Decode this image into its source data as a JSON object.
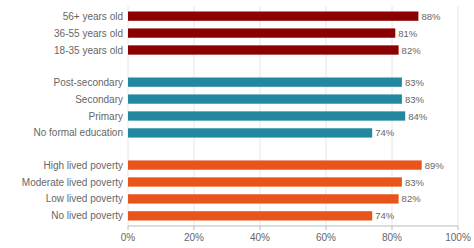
{
  "chart_data": {
    "type": "bar",
    "orientation": "horizontal",
    "categories": [
      "56+ years old",
      "36-55 years old",
      "18-35 years old",
      "Post-secondary",
      "Secondary",
      "Primary",
      "No formal education",
      "High lived poverty",
      "Moderate lived poverty",
      "Low lived poverty",
      "No lived poverty"
    ],
    "values": [
      88,
      81,
      82,
      83,
      83,
      84,
      74,
      89,
      83,
      82,
      74
    ],
    "value_labels": [
      "88%",
      "81%",
      "82%",
      "83%",
      "83%",
      "84%",
      "74%",
      "89%",
      "83%",
      "82%",
      "74%"
    ],
    "colors": [
      "#8b0000",
      "#8b0000",
      "#8b0000",
      "#2288a0",
      "#2288a0",
      "#2288a0",
      "#2288a0",
      "#e8541a",
      "#e8541a",
      "#e8541a",
      "#e8541a"
    ],
    "data_labels": true,
    "xlim": [
      0,
      100
    ],
    "xticks": [
      {
        "value": 0,
        "label": "0%"
      },
      {
        "value": 20,
        "label": "20%"
      },
      {
        "value": 40,
        "label": "40%"
      },
      {
        "value": 60,
        "label": "60%"
      },
      {
        "value": 80,
        "label": "80%"
      },
      {
        "value": 100,
        "label": "100%"
      }
    ],
    "grid": true
  }
}
